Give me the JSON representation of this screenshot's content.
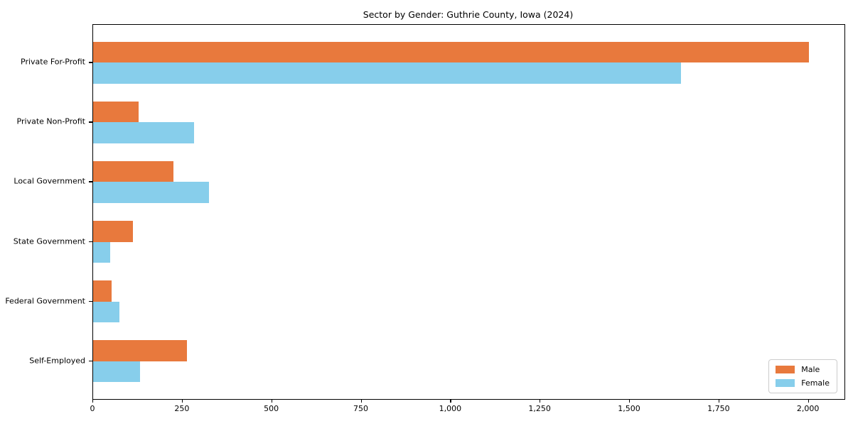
{
  "chart_data": {
    "type": "bar",
    "orientation": "horizontal",
    "title": "Sector by Gender: Guthrie County, Iowa (2024)",
    "xlabel": "",
    "ylabel": "",
    "grid": false,
    "xlim": [
      0,
      2100
    ],
    "categories": [
      "Private For-Profit",
      "Private Non-Profit",
      "Local Government",
      "State Government",
      "Federal Government",
      "Self-Employed"
    ],
    "series": [
      {
        "name": "Male",
        "color": "#e8793d",
        "values": [
          2000,
          127,
          224,
          111,
          52,
          262
        ]
      },
      {
        "name": "Female",
        "color": "#87ceeb",
        "values": [
          1643,
          282,
          324,
          48,
          73,
          131
        ]
      }
    ],
    "xticks": [
      {
        "value": 0,
        "label": "0"
      },
      {
        "value": 250,
        "label": "250"
      },
      {
        "value": 500,
        "label": "500"
      },
      {
        "value": 750,
        "label": "750"
      },
      {
        "value": 1000,
        "label": "1,000"
      },
      {
        "value": 1250,
        "label": "1,250"
      },
      {
        "value": 1500,
        "label": "1,500"
      },
      {
        "value": 1750,
        "label": "1,750"
      },
      {
        "value": 2000,
        "label": "2,000"
      }
    ],
    "legend": {
      "position": "lower right",
      "entries": [
        "Male",
        "Female"
      ]
    }
  }
}
